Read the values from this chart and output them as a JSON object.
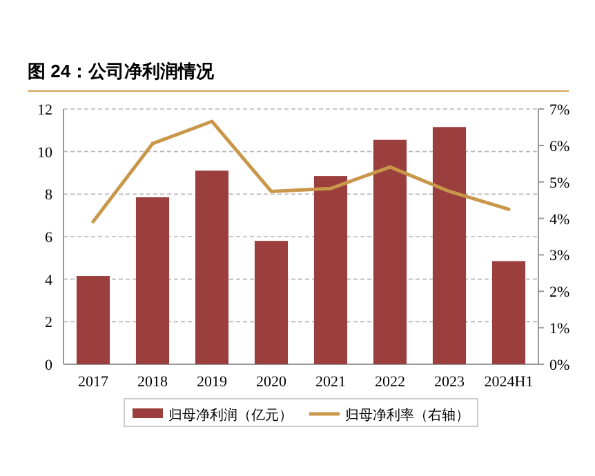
{
  "chart_data": {
    "type": "bar",
    "title": "图 24：公司净利润情况",
    "categories": [
      "2017",
      "2018",
      "2019",
      "2020",
      "2021",
      "2022",
      "2023",
      "2024H1"
    ],
    "series": [
      {
        "name": "归母净利润（亿元）",
        "color": "#9b3f3e",
        "values": [
          4.15,
          7.85,
          9.1,
          5.8,
          8.85,
          10.55,
          11.15,
          4.85
        ]
      },
      {
        "name": "归母净利率（右轴）",
        "type": "line",
        "axis": "y2",
        "color": "#c9974a",
        "values": [
          3.91,
          6.05,
          6.66,
          4.74,
          4.82,
          5.41,
          4.74,
          4.25
        ]
      }
    ],
    "ylim": [
      0,
      12
    ],
    "yticks": [
      0,
      2,
      4,
      6,
      8,
      10,
      12
    ],
    "y2lim": [
      0,
      7
    ],
    "y2ticks": [
      {
        "value": 0,
        "label": "0%"
      },
      {
        "value": 1,
        "label": "1%"
      },
      {
        "value": 2,
        "label": "2%"
      },
      {
        "value": 3,
        "label": "3%"
      },
      {
        "value": 4,
        "label": "4%"
      },
      {
        "value": 5,
        "label": "5%"
      },
      {
        "value": 6,
        "label": "6%"
      },
      {
        "value": 7,
        "label": "7%"
      }
    ],
    "grid": "y",
    "legend": "bottom",
    "marker": "none",
    "line_style": "solid"
  }
}
